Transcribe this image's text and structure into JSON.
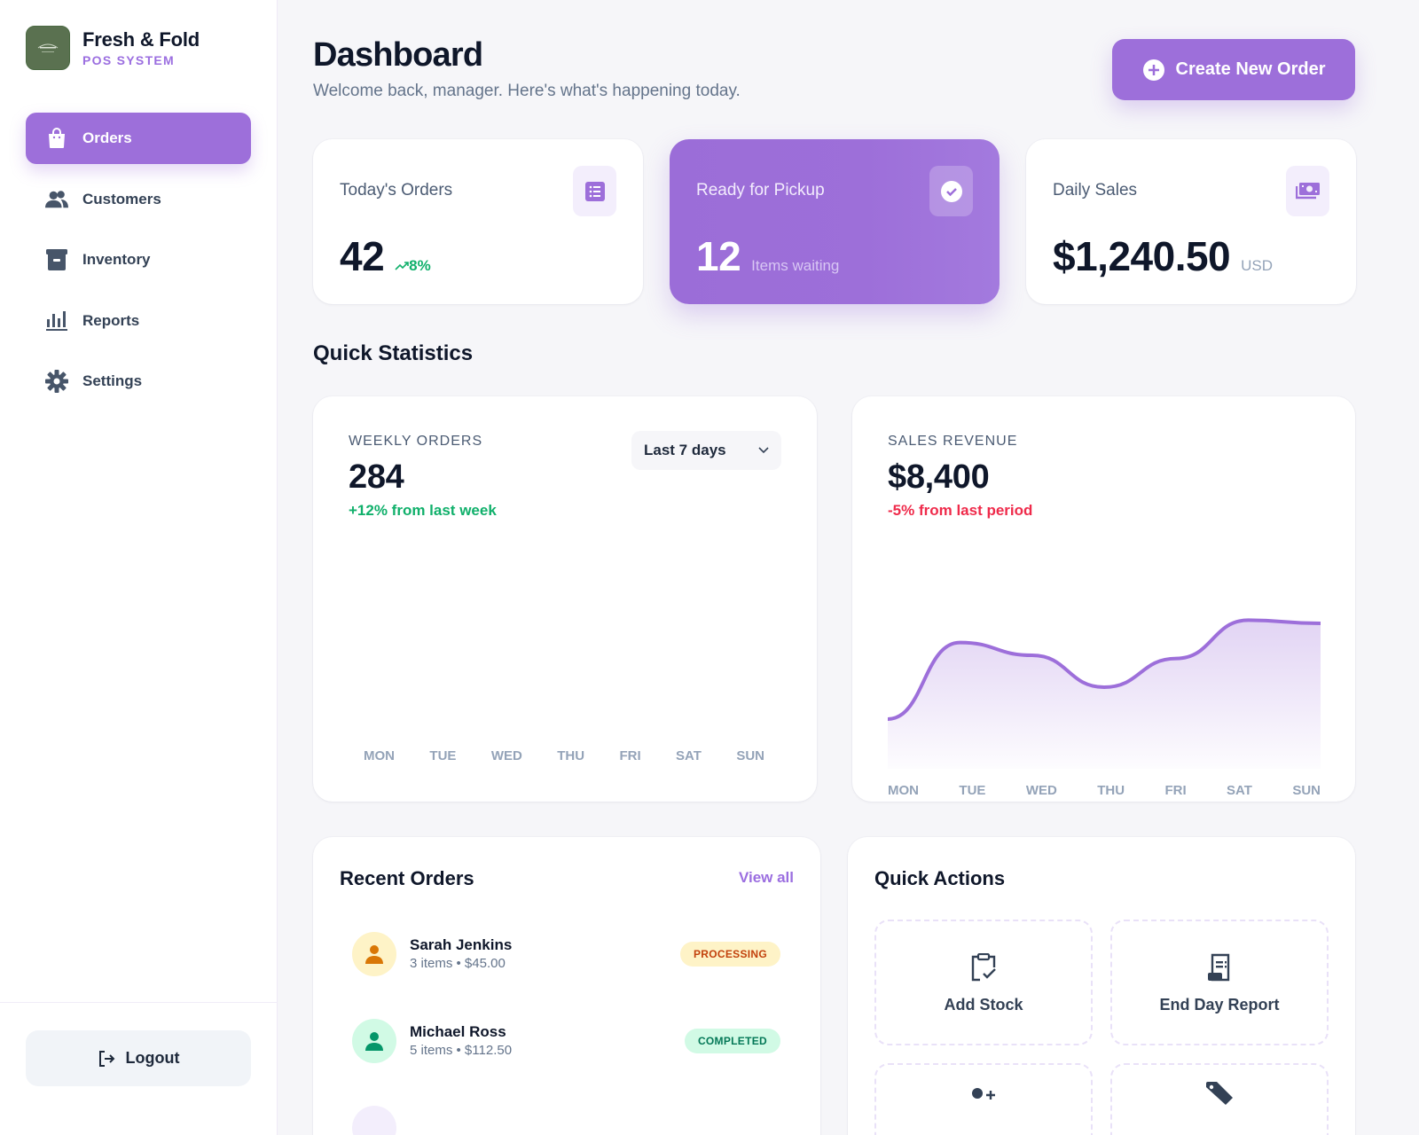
{
  "brand": {
    "name": "Fresh & Fold",
    "subtitle": "POS SYSTEM",
    "logo_color": "#5a7150"
  },
  "sidebar": {
    "items": [
      {
        "label": "Orders",
        "icon": "shopping-bag-icon",
        "active": true
      },
      {
        "label": "Customers",
        "icon": "users-icon",
        "active": false
      },
      {
        "label": "Inventory",
        "icon": "archive-box-icon",
        "active": false
      },
      {
        "label": "Reports",
        "icon": "bar-chart-icon",
        "active": false
      },
      {
        "label": "Settings",
        "icon": "gear-icon",
        "active": false
      }
    ],
    "logout_label": "Logout"
  },
  "header": {
    "title": "Dashboard",
    "subtitle": "Welcome back, manager. Here's what's happening today.",
    "create_button": "Create New Order"
  },
  "colors": {
    "accent": "#9d6fda",
    "positive": "#10b06b",
    "negative": "#ef2b4b",
    "text_dark": "#0f172a",
    "text_muted": "#64748b"
  },
  "stats": [
    {
      "label": "Today's Orders",
      "value": "42",
      "trend": "8%",
      "icon": "list-icon"
    },
    {
      "label": "Ready for Pickup",
      "value": "12",
      "note": "Items waiting",
      "icon": "check-circle-icon"
    },
    {
      "label": "Daily Sales",
      "value": "$1,240.50",
      "unit": "USD",
      "icon": "banknotes-icon"
    }
  ],
  "quick_statistics": {
    "title": "Quick Statistics",
    "weekly_orders": {
      "kicker": "WEEKLY ORDERS",
      "value": "284",
      "delta": "+12% from last week",
      "range": "Last 7 days",
      "days": [
        "MON",
        "TUE",
        "WED",
        "THU",
        "FRI",
        "SAT",
        "SUN"
      ]
    },
    "sales_revenue": {
      "kicker": "SALES REVENUE",
      "value": "$8,400",
      "delta": "-5% from last period",
      "days": [
        "MON",
        "TUE",
        "WED",
        "THU",
        "FRI",
        "SAT",
        "SUN"
      ]
    }
  },
  "chart_data": [
    {
      "type": "bar",
      "title": "WEEKLY ORDERS",
      "categories": [
        "MON",
        "TUE",
        "WED",
        "THU",
        "FRI",
        "SAT",
        "SUN"
      ],
      "values": [],
      "xlabel": "",
      "ylabel": "",
      "note": "No bars rendered; only day labels visible"
    },
    {
      "type": "area",
      "title": "SALES REVENUE",
      "categories": [
        "MON",
        "TUE",
        "WED",
        "THU",
        "FRI",
        "SAT",
        "SUN"
      ],
      "values": [
        20,
        68,
        60,
        40,
        58,
        82,
        80
      ],
      "ylim": [
        0,
        100
      ],
      "grid": false,
      "legend": "none",
      "xlabel": "",
      "ylabel": ""
    }
  ],
  "recent_orders": {
    "title": "Recent Orders",
    "view_all": "View all",
    "rows": [
      {
        "name": "Sarah Jenkins",
        "meta": "3 items • $45.00",
        "status": "PROCESSING"
      },
      {
        "name": "Michael Ross",
        "meta": "5 items • $112.50",
        "status": "COMPLETED"
      }
    ]
  },
  "quick_actions": {
    "title": "Quick Actions",
    "tiles": [
      {
        "label": "Add Stock",
        "icon": "clipboard-check-icon"
      },
      {
        "label": "End Day Report",
        "icon": "receipt-icon"
      },
      {
        "label": "",
        "icon": "user-plus-icon"
      },
      {
        "label": "",
        "icon": "tag-icon"
      }
    ]
  }
}
